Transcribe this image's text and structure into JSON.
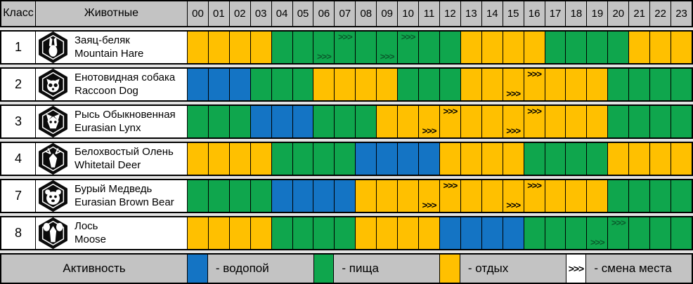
{
  "header": {
    "class_label": "Класс",
    "animals_label": "Животные"
  },
  "chart_data": {
    "type": "table",
    "hours": [
      "00",
      "01",
      "02",
      "03",
      "04",
      "05",
      "06",
      "07",
      "08",
      "09",
      "10",
      "11",
      "12",
      "13",
      "14",
      "15",
      "16",
      "17",
      "18",
      "19",
      "20",
      "21",
      "22",
      "23"
    ],
    "activity_codes": {
      "W": "водопой",
      "F": "пища",
      "R": "отдых"
    },
    "move_marker": ">>>",
    "rows": [
      {
        "class": "1",
        "icon": "hare-icon",
        "name_ru": "Заяц-беляк",
        "name_en": "Mountain Hare",
        "activity": [
          "R",
          "R",
          "R",
          "R",
          "F",
          "F",
          "F",
          "F",
          "F",
          "F",
          "F",
          "F",
          "F",
          "R",
          "R",
          "R",
          "R",
          "F",
          "F",
          "F",
          "F",
          "R",
          "R",
          "R"
        ],
        "markers": {
          "6": "bottom",
          "7": "top",
          "9": "bottom",
          "10": "top"
        }
      },
      {
        "class": "2",
        "icon": "raccoon-dog-icon",
        "name_ru": "Енотовидная собака",
        "name_en": "Raccoon Dog",
        "activity": [
          "W",
          "W",
          "W",
          "F",
          "F",
          "F",
          "R",
          "R",
          "R",
          "R",
          "F",
          "F",
          "F",
          "R",
          "R",
          "R",
          "R",
          "R",
          "R",
          "R",
          "F",
          "F",
          "F",
          "F"
        ],
        "markers": {
          "15": "bottom",
          "16": "top"
        }
      },
      {
        "class": "3",
        "icon": "lynx-icon",
        "name_ru": "Рысь Обыкновенная",
        "name_en": "Eurasian Lynx",
        "activity": [
          "F",
          "F",
          "F",
          "W",
          "W",
          "W",
          "F",
          "F",
          "F",
          "R",
          "R",
          "R",
          "R",
          "R",
          "R",
          "R",
          "R",
          "R",
          "R",
          "R",
          "F",
          "F",
          "F",
          "F"
        ],
        "markers": {
          "11": "bottom",
          "12": "top",
          "15": "bottom",
          "16": "top"
        }
      },
      {
        "class": "4",
        "icon": "deer-icon",
        "name_ru": "Белохвостый Олень",
        "name_en": "Whitetail Deer",
        "activity": [
          "R",
          "R",
          "R",
          "R",
          "F",
          "F",
          "F",
          "F",
          "W",
          "W",
          "W",
          "W",
          "R",
          "R",
          "R",
          "R",
          "F",
          "F",
          "F",
          "F",
          "R",
          "R",
          "R",
          "R"
        ],
        "markers": {}
      },
      {
        "class": "7",
        "icon": "bear-icon",
        "name_ru": "Бурый Медведь",
        "name_en": "Eurasian Brown Bear",
        "activity": [
          "F",
          "F",
          "F",
          "F",
          "W",
          "W",
          "W",
          "W",
          "R",
          "R",
          "R",
          "R",
          "R",
          "R",
          "R",
          "R",
          "R",
          "R",
          "R",
          "R",
          "F",
          "F",
          "F",
          "F"
        ],
        "markers": {
          "11": "bottom",
          "12": "top",
          "15": "bottom",
          "16": "top"
        }
      },
      {
        "class": "8",
        "icon": "moose-icon",
        "name_ru": "Лось",
        "name_en": "Moose",
        "activity": [
          "R",
          "R",
          "R",
          "R",
          "F",
          "F",
          "F",
          "F",
          "R",
          "R",
          "R",
          "R",
          "W",
          "W",
          "W",
          "W",
          "F",
          "F",
          "F",
          "F",
          "F",
          "F",
          "F",
          "F"
        ],
        "markers": {
          "19": "bottom",
          "20": "top"
        }
      }
    ]
  },
  "legend": {
    "title": "Активность",
    "marker_symbol": ">>>",
    "items": [
      {
        "type": "water",
        "col": 0,
        "label": "- водопой"
      },
      {
        "type": "food",
        "col": 6,
        "label": "- пища"
      },
      {
        "type": "rest",
        "col": 12,
        "label": "- отдых"
      },
      {
        "type": "move",
        "col": 18,
        "label": "- смена места"
      }
    ]
  },
  "colors": {
    "water": "#1474C4",
    "food": "#0FA64D",
    "rest": "#FFC000",
    "header_bg": "#C3C3C3",
    "gap_bg": "#E2E2E2",
    "marker_on_food": "#0A5B2C",
    "marker_default": "#000000"
  }
}
